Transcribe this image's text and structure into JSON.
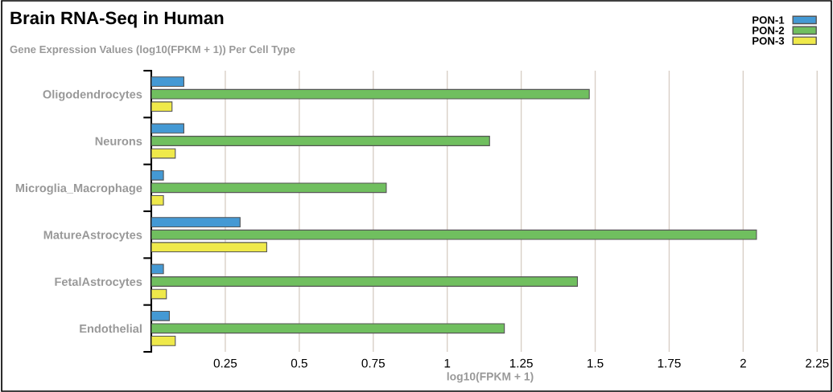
{
  "chart_data": {
    "type": "bar",
    "orientation": "horizontal",
    "title": "Brain RNA-Seq in Human",
    "subtitle": "Gene Expression Values (log10(FPKM + 1)) Per Cell Type",
    "xlabel": "log10(FPKM + 1)",
    "categories": [
      "Oligodendrocytes",
      "Neurons",
      "Microglia_Macrophage",
      "MatureAstrocytes",
      "FetalAstrocytes",
      "Endothelial"
    ],
    "series": [
      {
        "name": "PON-1",
        "color": "#4499d4",
        "values": [
          0.11,
          0.11,
          0.041,
          0.3,
          0.041,
          0.061
        ]
      },
      {
        "name": "PON-2",
        "color": "#70bf5f",
        "values": [
          1.48,
          1.143,
          0.794,
          2.045,
          1.44,
          1.193
        ]
      },
      {
        "name": "PON-3",
        "color": "#efe94a",
        "values": [
          0.07,
          0.081,
          0.041,
          0.39,
          0.051,
          0.081
        ]
      }
    ],
    "xlim": [
      0,
      2.29
    ],
    "xticks": [
      0.25,
      0.5,
      0.75,
      1,
      1.25,
      1.5,
      1.75,
      2,
      2.25
    ],
    "grid": "x",
    "legend": "top right"
  }
}
